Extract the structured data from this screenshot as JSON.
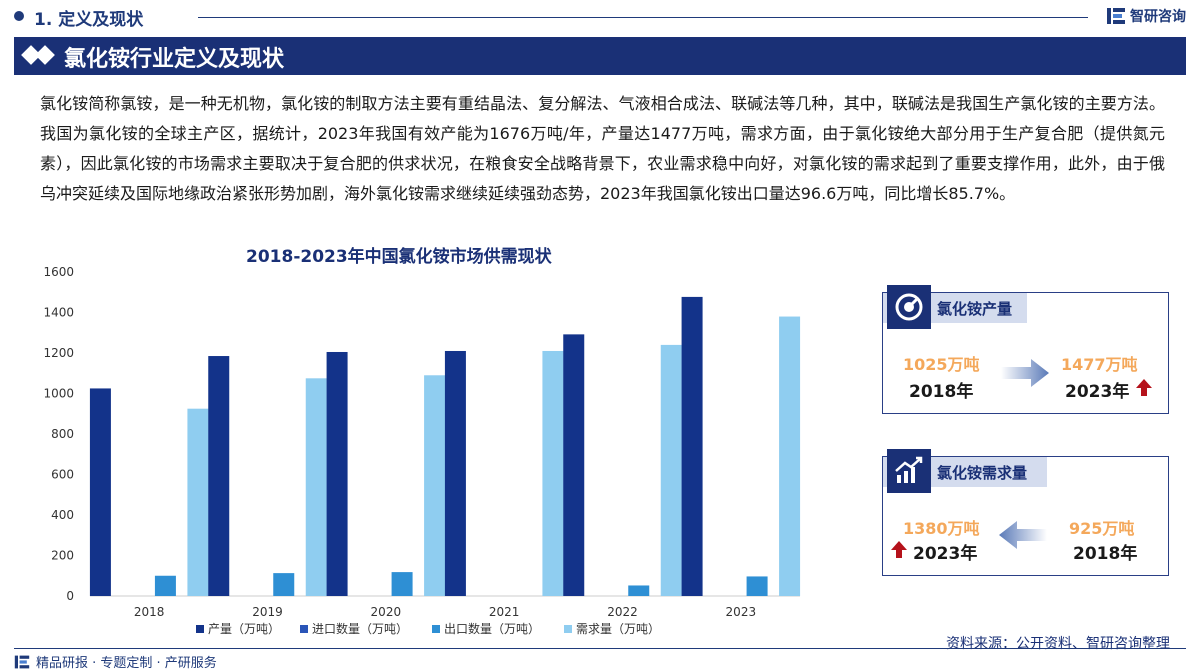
{
  "header": {
    "section_title": "1. 定义及现状",
    "logo_text": "智研咨询"
  },
  "band_title": "氯化铵行业定义及现状",
  "paragraph": "氯化铵简称氯铵，是一种无机物，氯化铵的制取方法主要有重结晶法、复分解法、气液相合成法、联碱法等几种，其中，联碱法是我国生产氯化铵的主要方法。我国为氯化铵的全球主产区，据统计，2023年我国有效产能为1676万吨/年，产量达1477万吨，需求方面，由于氯化铵绝大部分用于生产复合肥（提供氮元素），因此氯化铵的市场需求主要取决于复合肥的供求状况，在粮食安全战略背景下，农业需求稳中向好，对氯化铵的需求起到了重要支撑作用，此外，由于俄乌冲突延续及国际地缘政治紧张形势加剧，海外氯化铵需求继续延续强劲态势，2023年我国氯化铵出口量达96.6万吨，同比增长85.7%。",
  "chart_data": {
    "type": "bar",
    "title": "2018-2023年中国氯化铵市场供需现状",
    "categories": [
      "2018",
      "2019",
      "2020",
      "2021",
      "2022",
      "2023"
    ],
    "ylim": [
      0,
      1600
    ],
    "yticks": [
      "0",
      "200",
      "400",
      "600",
      "800",
      "1000",
      "1200",
      "1400",
      "1600"
    ],
    "series": [
      {
        "name": "产量（万吨）",
        "values": [
          1025,
          1185,
          1205,
          1210,
          1292,
          1477
        ],
        "color": "#13338a"
      },
      {
        "name": "进口数量（万吨）",
        "values": [
          0,
          0,
          0,
          0,
          0,
          0
        ],
        "color": "#2a55b8"
      },
      {
        "name": "出口数量（万吨）",
        "values": [
          100,
          113,
          118,
          0,
          52,
          96.6
        ],
        "color": "#2e8fd4"
      },
      {
        "name": "需求量（万吨）",
        "values": [
          925,
          1075,
          1090,
          1210,
          1240,
          1380
        ],
        "color": "#8fcdf0"
      }
    ],
    "legend_position": "bottom",
    "grid": false
  },
  "cards": {
    "production": {
      "label": "氯化铵产量",
      "from_value": "1025万吨",
      "from_year": "2018年",
      "to_value": "1477万吨",
      "to_year": "2023年",
      "icon": "gauge-icon"
    },
    "demand": {
      "label": "氯化铵需求量",
      "from_value": "925万吨",
      "from_year": "2018年",
      "to_value": "1380万吨",
      "to_year": "2023年",
      "icon": "growth-chart-icon"
    }
  },
  "source": "资料来源：公开资料、智研咨询整理",
  "footer": "精品研报 · 专题定制 · 产研服务",
  "colors": {
    "brand": "#1a3076",
    "accent_orange": "#f4a85b",
    "up_red": "#b5121b"
  }
}
